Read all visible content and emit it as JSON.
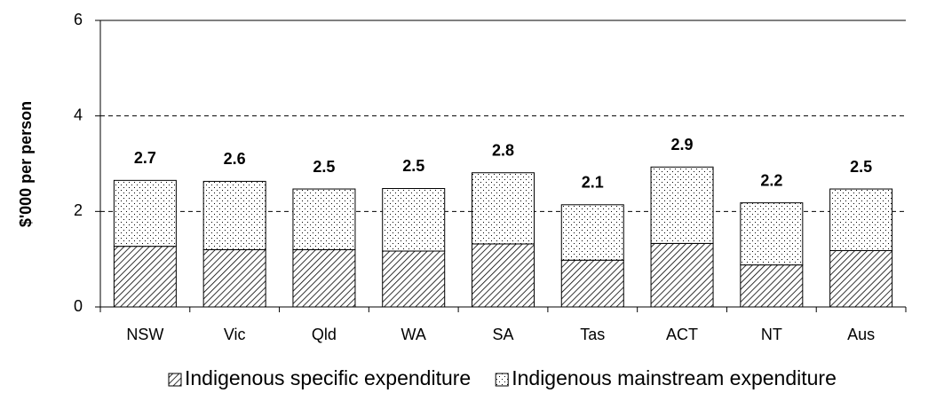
{
  "chart_data": {
    "type": "stacked_bar",
    "y_label": "$'000 per person",
    "categories": [
      "NSW",
      "Vic",
      "Qld",
      "WA",
      "SA",
      "Tas",
      "ACT",
      "NT",
      "Aus"
    ],
    "series": [
      {
        "name": "Indigenous specific expenditure",
        "pattern": "hatch",
        "color": "#000000",
        "values": [
          1.27,
          1.2,
          1.2,
          1.17,
          1.32,
          0.98,
          1.33,
          0.88,
          1.18
        ]
      },
      {
        "name": "Indigenous mainstream expenditure",
        "pattern": "dots",
        "color": "#000000",
        "values": [
          1.38,
          1.43,
          1.27,
          1.31,
          1.49,
          1.16,
          1.6,
          1.3,
          1.29
        ]
      }
    ],
    "total_labels": [
      "2.7",
      "2.6",
      "2.5",
      "2.5",
      "2.8",
      "2.1",
      "2.9",
      "2.2",
      "2.5"
    ],
    "ylim": [
      0,
      6
    ],
    "yticks": [
      0,
      2,
      4,
      6
    ],
    "grid": true,
    "legend": "bottom"
  }
}
